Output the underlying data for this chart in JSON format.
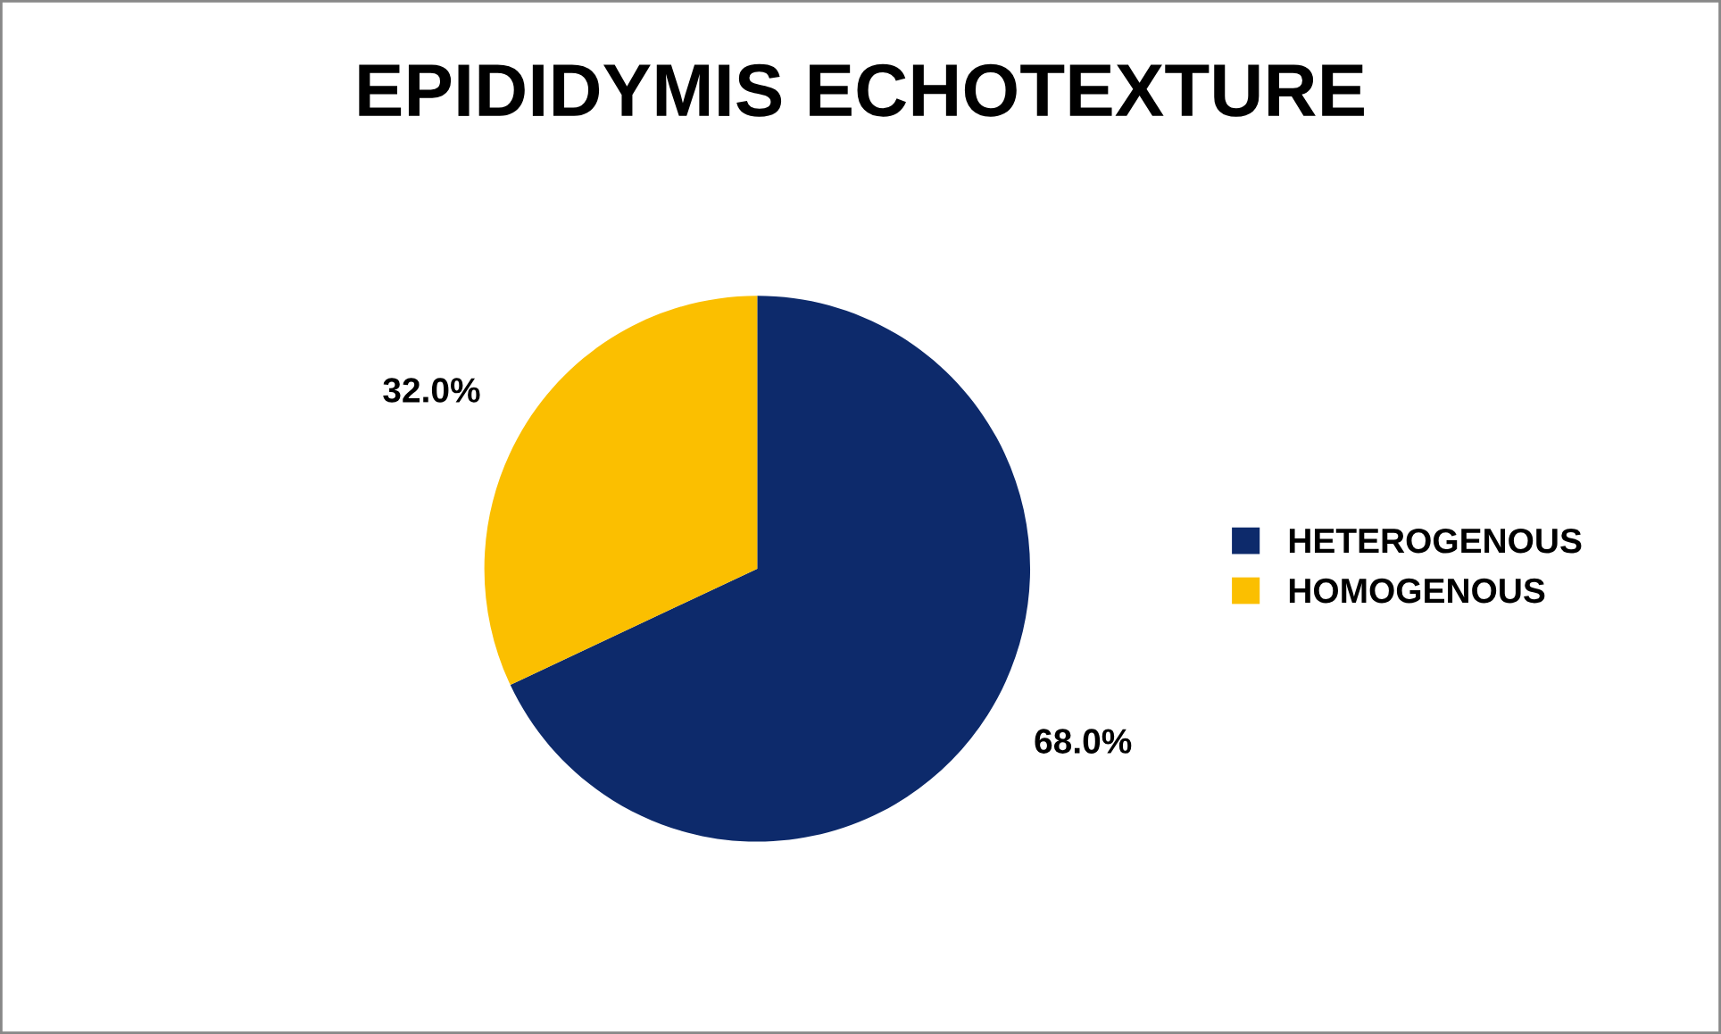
{
  "chart_data": {
    "type": "pie",
    "title": "EPIDIDYMIS ECHOTEXTURE",
    "categories": [
      "HETEROGENOUS",
      "HOMOGENOUS"
    ],
    "values": [
      68.0,
      32.0
    ],
    "colors": [
      "#0d2a6b",
      "#fbbf00"
    ],
    "value_labels": [
      "68.0%",
      "32.0%"
    ],
    "legend": "right"
  }
}
